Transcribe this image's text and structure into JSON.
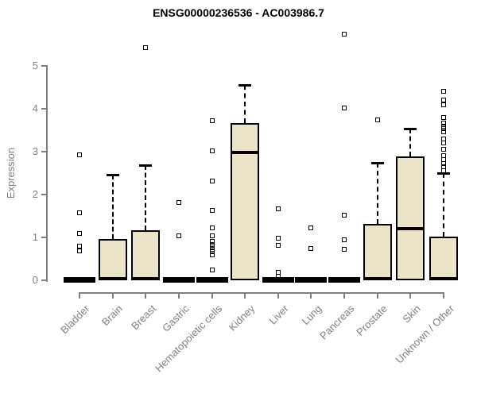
{
  "chart_data": {
    "type": "boxplot",
    "title": "ENSG00000236536 - AC003986.7",
    "xlabel": "",
    "ylabel": "Expression",
    "ylim": [
      0,
      5.9
    ],
    "yticks": [
      0,
      1,
      2,
      3,
      4,
      5
    ],
    "grid": "off",
    "legend": "none",
    "box_fill_color": "#EBE4C9",
    "box_border_color": "#000000",
    "axis_color": "#7f7f7f",
    "title_color": "#000000",
    "categories": [
      "Bladder",
      "Brain",
      "Breast",
      "Gastric",
      "Hematopoietic cells",
      "Kidney",
      "Liver",
      "Lung",
      "Pancreas",
      "Prostate",
      "Skin",
      "Unknown / Other"
    ],
    "series": [
      {
        "category": "Bladder",
        "q1": 0,
        "median": 0,
        "q3": 0,
        "whisker_low": 0,
        "whisker_high": 0,
        "outliers": [
          0.68,
          0.8,
          1.1,
          1.57,
          2.93
        ]
      },
      {
        "category": "Brain",
        "q1": 0,
        "median": 0.03,
        "q3": 0.97,
        "whisker_low": 0,
        "whisker_high": 2.47,
        "outliers": []
      },
      {
        "category": "Breast",
        "q1": 0,
        "median": 0.03,
        "q3": 1.17,
        "whisker_low": 0,
        "whisker_high": 2.69,
        "outliers": [
          5.43
        ]
      },
      {
        "category": "Gastric",
        "q1": 0,
        "median": 0,
        "q3": 0,
        "whisker_low": 0,
        "whisker_high": 0,
        "outliers": [
          1.04,
          1.81
        ]
      },
      {
        "category": "Hematopoietic cells",
        "q1": 0,
        "median": 0,
        "q3": 0,
        "whisker_low": 0,
        "whisker_high": 0,
        "outliers": [
          0.24,
          0.6,
          0.66,
          0.72,
          0.78,
          0.84,
          0.9,
          1.04,
          1.23,
          1.63,
          2.31,
          3.02,
          3.73
        ]
      },
      {
        "category": "Kidney",
        "q1": 0,
        "median": 2.99,
        "q3": 3.67,
        "whisker_low": 0,
        "whisker_high": 4.56,
        "outliers": []
      },
      {
        "category": "Liver",
        "q1": 0,
        "median": 0,
        "q3": 0,
        "whisker_low": 0,
        "whisker_high": 0,
        "outliers": [
          0.09,
          0.18,
          0.81,
          0.99,
          1.67
        ]
      },
      {
        "category": "Lung",
        "q1": 0,
        "median": 0,
        "q3": 0,
        "whisker_low": 0,
        "whisker_high": 0,
        "outliers": [
          0.75,
          1.23
        ]
      },
      {
        "category": "Pancreas",
        "q1": 0,
        "median": 0,
        "q3": 0,
        "whisker_low": 0,
        "whisker_high": 0,
        "outliers": [
          0.73,
          0.95,
          1.51,
          4.02,
          5.75
        ]
      },
      {
        "category": "Prostate",
        "q1": 0,
        "median": 0.03,
        "q3": 1.31,
        "whisker_low": 0,
        "whisker_high": 2.74,
        "outliers": [
          3.74
        ]
      },
      {
        "category": "Skin",
        "q1": 0,
        "median": 1.2,
        "q3": 2.89,
        "whisker_low": 0,
        "whisker_high": 3.54,
        "outliers": []
      },
      {
        "category": "Unknown / Other",
        "q1": 0,
        "median": 0.03,
        "q3": 1.01,
        "whisker_low": 0,
        "whisker_high": 2.5,
        "outliers": [
          2.56,
          2.64,
          2.73,
          2.81,
          2.9,
          3.06,
          3.2,
          3.3,
          3.46,
          3.53,
          3.6,
          3.67,
          3.8,
          4.1,
          4.2,
          4.4
        ]
      }
    ]
  }
}
